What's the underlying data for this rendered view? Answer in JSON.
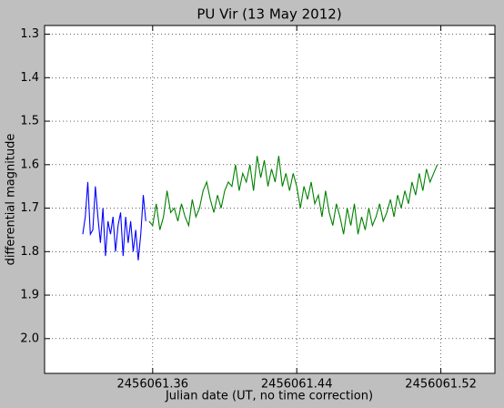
{
  "chart_data": {
    "type": "line",
    "title": "PU Vir (13 May 2012)",
    "xlabel": "Julian date (UT, no time correction)",
    "ylabel": "differential magnitude",
    "xlim": [
      2456061.3,
      2456061.55
    ],
    "xticks": [
      2456061.36,
      2456061.44,
      2456061.52
    ],
    "ylim": [
      2.08,
      1.28
    ],
    "yticks": [
      1.3,
      1.4,
      1.5,
      1.6,
      1.7,
      1.8,
      1.9,
      {
        "value": 2,
        "label": "2.0"
      }
    ],
    "grid": true,
    "series": [
      {
        "color": "#0000ff",
        "x": [
          2456061.3212,
          2456061.3226,
          2456061.324,
          2456061.3254,
          2456061.3268,
          2456061.3282,
          2456061.3296,
          2456061.331,
          2456061.3324,
          2456061.3338,
          2456061.3352,
          2456061.3366,
          2456061.338,
          2456061.3394,
          2456061.3408,
          2456061.3422,
          2456061.3436,
          2456061.345,
          2456061.3464,
          2456061.3478,
          2456061.3492,
          2456061.3506,
          2456061.352,
          2456061.3534,
          2456061.3548,
          2456061.3562
        ],
        "values": [
          1.76,
          1.72,
          1.64,
          1.76,
          1.75,
          1.65,
          1.72,
          1.78,
          1.7,
          1.81,
          1.73,
          1.76,
          1.72,
          1.8,
          1.74,
          1.71,
          1.81,
          1.72,
          1.78,
          1.73,
          1.8,
          1.75,
          1.82,
          1.76,
          1.67,
          1.73
        ]
      },
      {
        "color": "#008000",
        "x": [
          2456061.358,
          2456061.36,
          2456061.362,
          2456061.364,
          2456061.366,
          2456061.368,
          2456061.37,
          2456061.372,
          2456061.374,
          2456061.376,
          2456061.378,
          2456061.38,
          2456061.382,
          2456061.384,
          2456061.386,
          2456061.388,
          2456061.39,
          2456061.392,
          2456061.394,
          2456061.396,
          2456061.398,
          2456061.4,
          2456061.402,
          2456061.404,
          2456061.406,
          2456061.408,
          2456061.41,
          2456061.412,
          2456061.414,
          2456061.416,
          2456061.418,
          2456061.42,
          2456061.422,
          2456061.424,
          2456061.426,
          2456061.428,
          2456061.43,
          2456061.432,
          2456061.434,
          2456061.436,
          2456061.438,
          2456061.44,
          2456061.442,
          2456061.444,
          2456061.446,
          2456061.448,
          2456061.45,
          2456061.452,
          2456061.454,
          2456061.456,
          2456061.458,
          2456061.46,
          2456061.462,
          2456061.464,
          2456061.466,
          2456061.468,
          2456061.47,
          2456061.472,
          2456061.474,
          2456061.476,
          2456061.478,
          2456061.48,
          2456061.482,
          2456061.484,
          2456061.486,
          2456061.488,
          2456061.49,
          2456061.492,
          2456061.494,
          2456061.496,
          2456061.498,
          2456061.5,
          2456061.502,
          2456061.504,
          2456061.506,
          2456061.508,
          2456061.51,
          2456061.512,
          2456061.514,
          2456061.516,
          2456061.518
        ],
        "values": [
          1.73,
          1.74,
          1.69,
          1.75,
          1.72,
          1.66,
          1.71,
          1.7,
          1.73,
          1.69,
          1.72,
          1.74,
          1.68,
          1.72,
          1.7,
          1.66,
          1.64,
          1.68,
          1.71,
          1.67,
          1.7,
          1.66,
          1.64,
          1.65,
          1.6,
          1.66,
          1.62,
          1.64,
          1.6,
          1.66,
          1.58,
          1.63,
          1.59,
          1.65,
          1.61,
          1.64,
          1.58,
          1.65,
          1.62,
          1.66,
          1.62,
          1.65,
          1.7,
          1.65,
          1.68,
          1.64,
          1.69,
          1.67,
          1.72,
          1.66,
          1.71,
          1.74,
          1.69,
          1.72,
          1.76,
          1.7,
          1.74,
          1.69,
          1.76,
          1.72,
          1.75,
          1.7,
          1.74,
          1.72,
          1.69,
          1.73,
          1.71,
          1.68,
          1.72,
          1.67,
          1.7,
          1.66,
          1.69,
          1.64,
          1.67,
          1.62,
          1.66,
          1.61,
          1.64,
          1.62,
          1.6
        ]
      }
    ]
  }
}
